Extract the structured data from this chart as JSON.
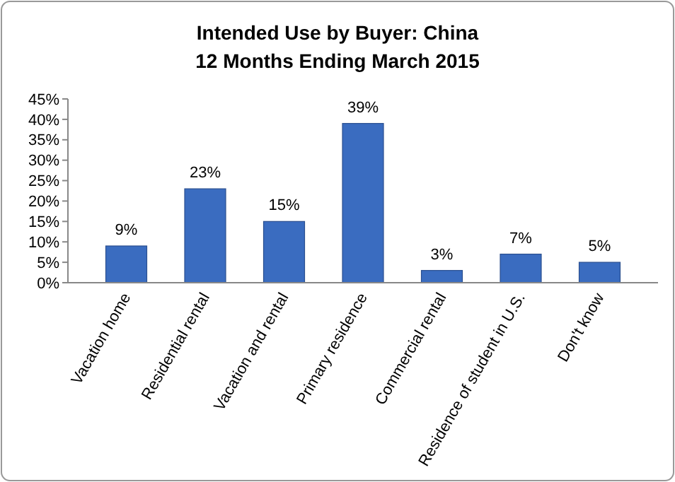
{
  "chart_data": {
    "type": "bar",
    "title": "Intended Use by Buyer: China",
    "subtitle": "12 Months Ending March 2015",
    "categories": [
      "Vacation home",
      "Residential rental",
      "Vacation and rental",
      "Primary residence",
      "Commercial rental",
      "Residence of student in U.S.",
      "Don't know"
    ],
    "values": [
      9,
      23,
      15,
      39,
      3,
      7,
      5
    ],
    "value_labels": [
      "9%",
      "23%",
      "15%",
      "39%",
      "3%",
      "7%",
      "5%"
    ],
    "color": "#3a6cc0",
    "ylim": [
      0,
      45
    ],
    "yticks": [
      {
        "value": 0,
        "label": "0%"
      },
      {
        "value": 5,
        "label": "5%"
      },
      {
        "value": 10,
        "label": "10%"
      },
      {
        "value": 15,
        "label": "15%"
      },
      {
        "value": 20,
        "label": "20%"
      },
      {
        "value": 25,
        "label": "25%"
      },
      {
        "value": 30,
        "label": "30%"
      },
      {
        "value": 35,
        "label": "35%"
      },
      {
        "value": 40,
        "label": "40%"
      },
      {
        "value": 45,
        "label": "45%"
      }
    ],
    "grid": false
  }
}
